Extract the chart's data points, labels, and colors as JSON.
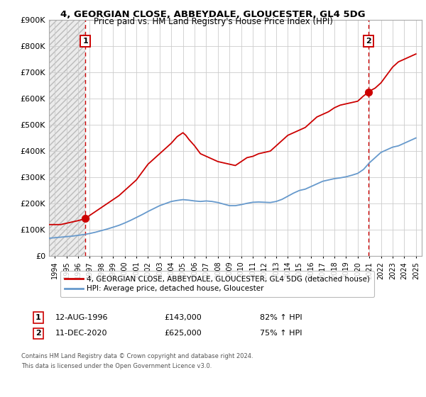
{
  "title": "4, GEORGIAN CLOSE, ABBEYDALE, GLOUCESTER, GL4 5DG",
  "subtitle": "Price paid vs. HM Land Registry's House Price Index (HPI)",
  "legend_line1": "4, GEORGIAN CLOSE, ABBEYDALE, GLOUCESTER, GL4 5DG (detached house)",
  "legend_line2": "HPI: Average price, detached house, Gloucester",
  "annotation1_date": "12-AUG-1996",
  "annotation1_price": "£143,000",
  "annotation1_hpi": "82% ↑ HPI",
  "annotation2_date": "11-DEC-2020",
  "annotation2_price": "£625,000",
  "annotation2_hpi": "75% ↑ HPI",
  "footnote1": "Contains HM Land Registry data © Crown copyright and database right 2024.",
  "footnote2": "This data is licensed under the Open Government Licence v3.0.",
  "ylim": [
    0,
    900000
  ],
  "yticks": [
    0,
    100000,
    200000,
    300000,
    400000,
    500000,
    600000,
    700000,
    800000,
    900000
  ],
  "ytick_labels": [
    "£0",
    "£100K",
    "£200K",
    "£300K",
    "£400K",
    "£500K",
    "£600K",
    "£700K",
    "£800K",
    "£900K"
  ],
  "xlim_start": 1993.5,
  "xlim_end": 2025.5,
  "xtick_years": [
    1994,
    1995,
    1996,
    1997,
    1998,
    1999,
    2000,
    2001,
    2002,
    2003,
    2004,
    2005,
    2006,
    2007,
    2008,
    2009,
    2010,
    2011,
    2012,
    2013,
    2014,
    2015,
    2016,
    2017,
    2018,
    2019,
    2020,
    2021,
    2022,
    2023,
    2024,
    2025
  ],
  "red_color": "#cc0000",
  "blue_color": "#6699cc",
  "grid_color": "#cccccc",
  "vline1_x": 1996.62,
  "vline2_x": 2020.95,
  "point1_x": 1996.62,
  "point1_y": 143000,
  "point2_x": 2020.95,
  "point2_y": 625000,
  "red_line_x": [
    1993.5,
    1994.0,
    1994.5,
    1995.0,
    1995.5,
    1996.0,
    1996.62,
    1997.0,
    1997.5,
    1998.0,
    1998.5,
    1999.0,
    1999.5,
    2000.0,
    2000.5,
    2001.0,
    2001.5,
    2002.0,
    2002.5,
    2003.0,
    2003.5,
    2004.0,
    2004.5,
    2005.0,
    2005.25,
    2005.5,
    2006.0,
    2006.5,
    2007.0,
    2007.5,
    2008.0,
    2008.5,
    2009.0,
    2009.5,
    2010.0,
    2010.5,
    2011.0,
    2011.5,
    2012.0,
    2012.5,
    2013.0,
    2013.5,
    2014.0,
    2014.5,
    2015.0,
    2015.5,
    2016.0,
    2016.5,
    2017.0,
    2017.5,
    2018.0,
    2018.5,
    2019.0,
    2019.5,
    2020.0,
    2020.5,
    2020.95,
    2021.0,
    2021.5,
    2022.0,
    2022.5,
    2023.0,
    2023.5,
    2024.0,
    2024.5,
    2025.0
  ],
  "red_line_y": [
    120000,
    120000,
    120000,
    125000,
    130000,
    135000,
    143000,
    155000,
    170000,
    185000,
    200000,
    215000,
    230000,
    250000,
    270000,
    290000,
    320000,
    350000,
    370000,
    390000,
    410000,
    430000,
    455000,
    470000,
    460000,
    445000,
    420000,
    390000,
    380000,
    370000,
    360000,
    355000,
    350000,
    345000,
    360000,
    375000,
    380000,
    390000,
    395000,
    400000,
    420000,
    440000,
    460000,
    470000,
    480000,
    490000,
    510000,
    530000,
    540000,
    550000,
    565000,
    575000,
    580000,
    585000,
    590000,
    610000,
    625000,
    628000,
    640000,
    660000,
    690000,
    720000,
    740000,
    750000,
    760000,
    770000
  ],
  "blue_line_x": [
    1993.5,
    1994.0,
    1994.5,
    1995.0,
    1995.5,
    1996.0,
    1996.5,
    1997.0,
    1997.5,
    1998.0,
    1998.5,
    1999.0,
    1999.5,
    2000.0,
    2000.5,
    2001.0,
    2001.5,
    2002.0,
    2002.5,
    2003.0,
    2003.5,
    2004.0,
    2004.5,
    2005.0,
    2005.5,
    2006.0,
    2006.5,
    2007.0,
    2007.5,
    2008.0,
    2008.5,
    2009.0,
    2009.5,
    2010.0,
    2010.5,
    2011.0,
    2011.5,
    2012.0,
    2012.5,
    2013.0,
    2013.5,
    2014.0,
    2014.5,
    2015.0,
    2015.5,
    2016.0,
    2016.5,
    2017.0,
    2017.5,
    2018.0,
    2018.5,
    2019.0,
    2019.5,
    2020.0,
    2020.5,
    2021.0,
    2021.5,
    2022.0,
    2022.5,
    2023.0,
    2023.5,
    2024.0,
    2024.5,
    2025.0
  ],
  "blue_line_y": [
    68000,
    70000,
    72000,
    74000,
    76000,
    79000,
    82000,
    86000,
    91000,
    97000,
    103000,
    110000,
    117000,
    126000,
    136000,
    147000,
    158000,
    170000,
    181000,
    192000,
    200000,
    208000,
    212000,
    215000,
    213000,
    210000,
    208000,
    210000,
    208000,
    204000,
    198000,
    192000,
    192000,
    196000,
    201000,
    205000,
    206000,
    205000,
    204000,
    208000,
    216000,
    228000,
    240000,
    250000,
    255000,
    265000,
    275000,
    285000,
    290000,
    295000,
    298000,
    302000,
    308000,
    315000,
    330000,
    355000,
    375000,
    395000,
    405000,
    415000,
    420000,
    430000,
    440000,
    450000
  ]
}
